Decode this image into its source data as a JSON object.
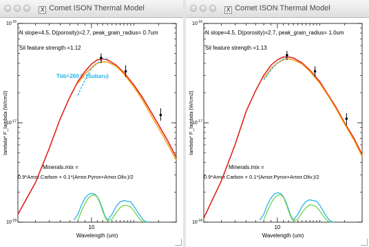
{
  "windows": [
    {
      "title": "Comet ISON Thermal Model",
      "header_line": "N slope=4.5,   D(porosity)=2.7,  peak_grain_radius= 0.7um",
      "sil_line": "Sil feature strength =1.12",
      "tbb_label": "Tbb=260 K (Subaru)",
      "minerals_title": "Minerals.mix =",
      "minerals_formula": "0.9*Amor.Carbon + 0.1*(Amor.Pyrox+Amor.Oliv.)/2",
      "y_axis_label": "lambda* F_lambda (W/cm2)",
      "x_axis_label": "Wavelength (um)",
      "y_ticks": [
        "10^-16",
        "10^-17",
        "10^-18"
      ],
      "x_ticks": [
        "10"
      ]
    },
    {
      "title": "Comet ISON Thermal Model",
      "header_line": "N slope=4.5,   D(porosity)=2.7,  peak_grain_radius= 1.0um",
      "sil_line": "Sil feature strength =1.13",
      "minerals_title": "Minerals.mix =",
      "minerals_formula": "0.9*Amor.Carbon + 0.1*(Amor.Pyrox+Amor.Oliv.)/2",
      "y_axis_label": "lambda* F_lambda (W/cm2)",
      "x_axis_label": "Wavelength (um)",
      "y_ticks": [
        "10^-16",
        "10^-17",
        "10^-18"
      ],
      "x_ticks": [
        "10"
      ]
    }
  ],
  "chart_data": [
    {
      "type": "line",
      "x_scale": "log",
      "y_scale": "log",
      "xlim": [
        3,
        40
      ],
      "ylim": [
        1e-18,
        1e-16
      ],
      "xlabel": "Wavelength (um)",
      "ylabel": "lambda* F_lambda (W/cm2)",
      "grid": false,
      "series": [
        {
          "color": "#e0201b",
          "x": [
            3,
            4,
            5,
            6,
            7,
            8,
            9,
            10,
            11,
            12,
            13,
            15,
            17,
            20,
            23,
            26,
            30,
            35,
            40
          ],
          "y": [
            1.2e-18,
            2.5e-18,
            5.5e-18,
            1.1e-17,
            1.8e-17,
            2.6e-17,
            3.3e-17,
            3.9e-17,
            4.3e-17,
            4.4e-17,
            4.3e-17,
            3.8e-17,
            3.2e-17,
            2.4e-17,
            1.8e-17,
            1.35e-17,
            9.5e-18,
            6.5e-18,
            4.5e-18
          ]
        },
        {
          "color": "#f5a31a",
          "x": [
            8,
            9,
            10,
            11,
            12,
            13,
            15,
            17,
            20,
            23,
            26,
            30,
            35,
            40
          ],
          "y": [
            2.5e-17,
            3.1e-17,
            3.6e-17,
            4e-17,
            4.1e-17,
            4.1e-17,
            3.7e-17,
            3.1e-17,
            2.3e-17,
            1.7e-17,
            1.25e-17,
            8.8e-18,
            6e-18,
            4.2e-18
          ]
        },
        {
          "color": "#2ab2e6",
          "dashed": true,
          "x": [
            8,
            8.5,
            9,
            9.5,
            10,
            11,
            12,
            13
          ],
          "y": [
            1.9e-17,
            2.3e-17,
            2.7e-17,
            3.1e-17,
            3.5e-17,
            4e-17,
            4.3e-17,
            4.5e-17
          ]
        },
        {
          "color": "#2ab2e6",
          "x": [
            7.5,
            8,
            8.5,
            9,
            9.5,
            10,
            10.5,
            11,
            11.5,
            12,
            12.5,
            13,
            14,
            15,
            16,
            17,
            18,
            19,
            20,
            21,
            22,
            23,
            24,
            25
          ],
          "y": [
            1.05e-18,
            1.2e-18,
            1.5e-18,
            1.75e-18,
            1.9e-18,
            1.95e-18,
            1.92e-18,
            1.8e-18,
            1.6e-18,
            1.35e-18,
            1.15e-18,
            1.05e-18,
            1.2e-18,
            1.45e-18,
            1.6e-18,
            1.65e-18,
            1.62e-18,
            1.6e-18,
            1.45e-18,
            1.3e-18,
            1.18e-18,
            1.08e-18,
            1.02e-18,
            1e-18
          ]
        },
        {
          "color": "#6ed24a",
          "x": [
            8,
            8.5,
            9,
            9.5,
            10,
            10.5,
            11,
            11.5,
            12,
            12.5,
            13,
            14,
            15,
            16,
            17,
            18,
            19,
            20,
            21,
            22,
            23,
            24
          ],
          "y": [
            1.05e-18,
            1.3e-18,
            1.55e-18,
            1.75e-18,
            1.85e-18,
            1.88e-18,
            1.78e-18,
            1.55e-18,
            1.3e-18,
            1.12e-18,
            1.03e-18,
            1.08e-18,
            1.25e-18,
            1.4e-18,
            1.48e-18,
            1.47e-18,
            1.42e-18,
            1.3e-18,
            1.18e-18,
            1.08e-18,
            1.02e-18,
            1e-18
          ]
        }
      ],
      "points": [
        {
          "x": 11.7,
          "y": 4.5e-17,
          "err_low": 4e-17,
          "err_high": 5e-17
        },
        {
          "x": 17.5,
          "y": 3.3e-17,
          "err_low": 2.9e-17,
          "err_high": 3.8e-17
        },
        {
          "x": 31.0,
          "y": 1.2e-17,
          "err_low": 1.05e-17,
          "err_high": 1.4e-17
        }
      ]
    },
    {
      "type": "line",
      "x_scale": "log",
      "y_scale": "log",
      "xlim": [
        3,
        40
      ],
      "ylim": [
        1e-18,
        1e-16
      ],
      "xlabel": "Wavelength (um)",
      "ylabel": "lambda* F_lambda (W/cm2)",
      "grid": false,
      "series": [
        {
          "color": "#e0201b",
          "x": [
            3,
            4,
            5,
            6,
            7,
            8,
            9,
            10,
            11,
            12,
            13,
            15,
            17,
            20,
            23,
            26,
            30,
            35,
            40
          ],
          "y": [
            1.1e-18,
            2.6e-18,
            6e-18,
            1.3e-17,
            2.1e-17,
            3e-17,
            3.8e-17,
            4.3e-17,
            4.6e-17,
            4.6e-17,
            4.5e-17,
            4e-17,
            3.4e-17,
            2.6e-17,
            1.9e-17,
            1.45e-17,
            1e-17,
            7e-18,
            4.8e-18
          ]
        },
        {
          "color": "#f5a31a",
          "x": [
            8,
            9,
            10,
            11,
            12,
            13,
            15,
            17,
            20,
            23,
            26,
            30,
            35,
            40
          ],
          "y": [
            2.8e-17,
            3.5e-17,
            4e-17,
            4.3e-17,
            4.4e-17,
            4.3e-17,
            3.9e-17,
            3.3e-17,
            2.5e-17,
            1.85e-17,
            1.4e-17,
            9.7e-18,
            6.7e-18,
            4.6e-18
          ]
        },
        {
          "color": "#2ab2e6",
          "dashed": true,
          "x": [
            8,
            8.5,
            9,
            9.5,
            10,
            11,
            12
          ],
          "y": [
            2.7e-17,
            3e-17,
            3.4e-17,
            3.7e-17,
            4e-17,
            4.4e-17,
            4.6e-17
          ]
        },
        {
          "color": "#2ab2e6",
          "x": [
            7.5,
            8,
            8.5,
            9,
            9.5,
            10,
            10.5,
            11,
            11.5,
            12,
            12.5,
            13,
            14,
            15,
            16,
            17,
            18,
            19,
            20,
            21,
            22,
            23,
            24,
            25
          ],
          "y": [
            1.05e-18,
            1.2e-18,
            1.5e-18,
            1.75e-18,
            1.92e-18,
            1.98e-18,
            1.95e-18,
            1.82e-18,
            1.6e-18,
            1.35e-18,
            1.15e-18,
            1.05e-18,
            1.2e-18,
            1.45e-18,
            1.62e-18,
            1.68e-18,
            1.65e-18,
            1.62e-18,
            1.48e-18,
            1.32e-18,
            1.18e-18,
            1.08e-18,
            1.02e-18,
            1e-18
          ]
        },
        {
          "color": "#6ed24a",
          "x": [
            8,
            8.5,
            9,
            9.5,
            10,
            10.5,
            11,
            11.5,
            12,
            12.5,
            13,
            14,
            15,
            16,
            17,
            18,
            19,
            20,
            21,
            22,
            23,
            24
          ],
          "y": [
            1.05e-18,
            1.3e-18,
            1.55e-18,
            1.75e-18,
            1.86e-18,
            1.9e-18,
            1.8e-18,
            1.55e-18,
            1.3e-18,
            1.12e-18,
            1.03e-18,
            1.08e-18,
            1.25e-18,
            1.4e-18,
            1.5e-18,
            1.48e-18,
            1.42e-18,
            1.3e-18,
            1.18e-18,
            1.08e-18,
            1.02e-18,
            1e-18
          ]
        }
      ],
      "points": [
        {
          "x": 11.7,
          "y": 4.8e-17,
          "err_low": 4.3e-17,
          "err_high": 5.3e-17
        },
        {
          "x": 18.5,
          "y": 3.3e-17,
          "err_low": 2.9e-17,
          "err_high": 3.7e-17
        },
        {
          "x": 31.0,
          "y": 1.1e-17,
          "err_low": 9.5e-18,
          "err_high": 1.25e-17
        }
      ]
    }
  ]
}
